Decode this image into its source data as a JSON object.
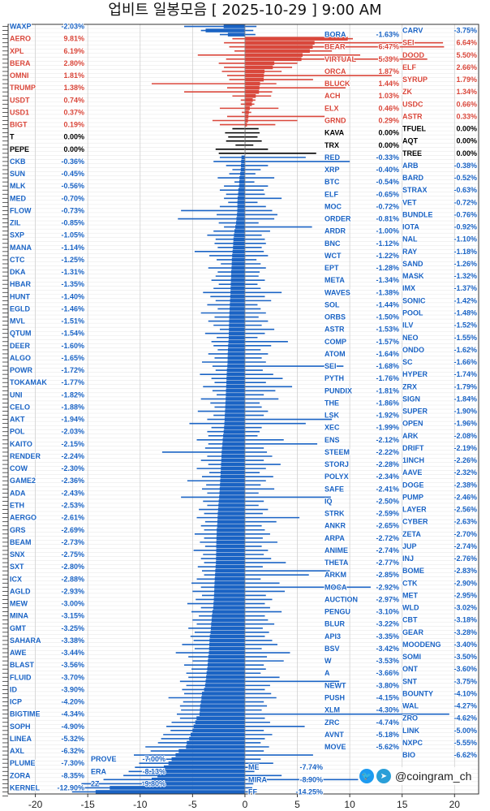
{
  "title": "업비트 일봉모음 [ 2025-10-29 ]  9:00 AM",
  "watermark": "@coingram_ch",
  "icons": [
    "twitter-icon",
    "telegram-icon"
  ],
  "colors": {
    "up": "#d9473b",
    "down": "#1a63c4",
    "flat": "#000000"
  },
  "chart_data": {
    "type": "bar",
    "orientation": "horizontal",
    "title": "업비트 일봉모음 [ 2025-10-29 ]  9:00 AM",
    "xlim": [
      -22.6,
      22.3
    ],
    "xticks": [
      -20,
      -15,
      -10,
      -5,
      0,
      5,
      10,
      15,
      20
    ],
    "grid": true,
    "columns": [
      "name",
      "change_pct",
      "low_pct",
      "high_pct"
    ],
    "rows": [
      [
        "WAXP",
        -2.03,
        -5.8,
        1.1
      ],
      [
        "CARV",
        -3.75,
        -4.2,
        0.8
      ],
      [
        "BORA",
        -1.63,
        -2.4,
        1.0
      ],
      [
        "AERO",
        9.81,
        -1.2,
        10.3
      ],
      [
        "SEI",
        6.64,
        -2.0,
        18.9
      ],
      [
        "BEAR",
        6.47,
        -1.5,
        19.0
      ],
      [
        "XPL",
        6.19,
        -1.0,
        8.3
      ],
      [
        "DOOD",
        5.5,
        -4.5,
        11.0
      ],
      [
        "VIRTUAL",
        5.39,
        -1.8,
        17.4
      ],
      [
        "BERA",
        2.8,
        -2.5,
        5.0
      ],
      [
        "ELF",
        2.66,
        -2.0,
        4.5
      ],
      [
        "ORCA",
        1.87,
        -2.2,
        3.5
      ],
      [
        "OMNI",
        1.81,
        -1.7,
        14.0
      ],
      [
        "SYRUP",
        1.79,
        -1.5,
        6.5
      ],
      [
        "BLUCK",
        1.44,
        -8.9,
        3.0
      ],
      [
        "TRUMP",
        1.38,
        -1.7,
        9.6
      ],
      [
        "ZK",
        1.34,
        -5.8,
        2.6
      ],
      [
        "ACH",
        1.03,
        -1.2,
        2.5
      ],
      [
        "USDT",
        0.74,
        -0.4,
        1.0
      ],
      [
        "USDC",
        0.66,
        -0.4,
        0.9
      ],
      [
        "ELX",
        0.46,
        -2.4,
        3.2
      ],
      [
        "USD1",
        0.37,
        -0.3,
        0.6
      ],
      [
        "ASTR",
        0.33,
        -1.7,
        7.6
      ],
      [
        "GRND",
        0.29,
        -3.1,
        5.0
      ],
      [
        "BIGT",
        0.19,
        -2.4,
        2.9
      ],
      [
        "TFUEL",
        0.0,
        -1.2,
        1.3
      ],
      [
        "KAVA",
        0.0,
        -1.9,
        1.4
      ],
      [
        "T",
        0.0,
        -1.6,
        1.2
      ],
      [
        "AQT",
        0.0,
        -1.8,
        1.6
      ],
      [
        "TRX",
        0.0,
        -0.9,
        0.8
      ],
      [
        "PEPE",
        0.0,
        -2.8,
        2.2
      ],
      [
        "TREE",
        0.0,
        -2.5,
        6.8
      ],
      [
        "RED",
        -0.33,
        -2.4,
        5.8
      ],
      [
        "CKB",
        -0.36,
        -3.0,
        10.0
      ],
      [
        "ARB",
        -0.38,
        -1.8,
        2.2
      ],
      [
        "XRP",
        -0.4,
        -1.2,
        1.5
      ],
      [
        "SUN",
        -0.45,
        -1.5,
        1.0
      ],
      [
        "BARD",
        -0.52,
        -2.6,
        2.8
      ],
      [
        "BTC",
        -0.54,
        -1.0,
        0.9
      ],
      [
        "MLK",
        -0.56,
        -2.0,
        2.2
      ],
      [
        "STRAX",
        -0.63,
        -2.4,
        1.8
      ],
      [
        "ELF",
        -0.65,
        -1.8,
        1.9
      ],
      [
        "MED",
        -0.7,
        -2.0,
        3.5
      ],
      [
        "VET",
        -0.72,
        -1.6,
        1.2
      ],
      [
        "MOC",
        -0.72,
        -2.4,
        2.0
      ],
      [
        "FLOW",
        -0.73,
        -6.1,
        2.6
      ],
      [
        "BUNDLE",
        -0.76,
        -2.7,
        3.1
      ],
      [
        "ORDER",
        -0.81,
        -6.4,
        2.8
      ],
      [
        "ZIL",
        -0.85,
        -2.5,
        1.3
      ],
      [
        "IOTA",
        -0.92,
        -2.0,
        6.4
      ],
      [
        "ARDR",
        -1.0,
        -3.0,
        2.4
      ],
      [
        "SXP",
        -1.05,
        -3.6,
        1.6
      ],
      [
        "NAL",
        -1.1,
        -2.8,
        1.9
      ],
      [
        "BNC",
        -1.12,
        -2.9,
        2.0
      ],
      [
        "MANA",
        -1.14,
        -2.6,
        1.6
      ],
      [
        "RAY",
        -1.18,
        -4.8,
        1.8
      ],
      [
        "WCT",
        -1.22,
        -3.4,
        2.2
      ],
      [
        "CTC",
        -1.25,
        -2.7,
        1.1
      ],
      [
        "SAND",
        -1.26,
        -2.3,
        1.5
      ],
      [
        "EPT",
        -1.28,
        -3.5,
        2.0
      ],
      [
        "DKA",
        -1.31,
        -2.6,
        1.4
      ],
      [
        "MASK",
        -1.32,
        -2.8,
        1.3
      ],
      [
        "META",
        -1.34,
        -3.2,
        1.9
      ],
      [
        "HBAR",
        -1.35,
        -2.5,
        1.2
      ],
      [
        "IMX",
        -1.37,
        -3.0,
        1.5
      ],
      [
        "WAVES",
        -1.38,
        -4.0,
        3.5
      ],
      [
        "HUNT",
        -1.4,
        -3.3,
        1.9
      ],
      [
        "SONIC",
        -1.42,
        -2.8,
        2.5
      ],
      [
        "SOL",
        -1.44,
        -3.6,
        1.2
      ],
      [
        "EGLD",
        -1.46,
        -2.6,
        1.5
      ],
      [
        "POOL",
        -1.48,
        -4.2,
        2.0
      ],
      [
        "ORBS",
        -1.5,
        -2.9,
        1.3
      ],
      [
        "MVL",
        -1.51,
        -3.5,
        2.2
      ],
      [
        "ILV",
        -1.52,
        -3.0,
        1.6
      ],
      [
        "ASTR",
        -1.53,
        -2.4,
        2.8
      ],
      [
        "QTUM",
        -1.54,
        -3.8,
        1.9
      ],
      [
        "NEO",
        -1.55,
        -2.7,
        1.2
      ],
      [
        "COMP",
        -1.57,
        -3.2,
        4.1
      ],
      [
        "DEER",
        -1.6,
        -3.0,
        2.5
      ],
      [
        "ONDO",
        -1.62,
        -2.6,
        1.5
      ],
      [
        "ATOM",
        -1.64,
        -3.5,
        2.2
      ],
      [
        "ALGO",
        -1.65,
        -2.9,
        1.6
      ],
      [
        "SC",
        -1.66,
        -4.1,
        2.0
      ],
      [
        "SEI",
        -1.68,
        -3.1,
        9.4
      ],
      [
        "POWR",
        -1.72,
        -2.8,
        1.7
      ],
      [
        "HYPER",
        -1.74,
        -4.3,
        2.7
      ],
      [
        "PYTH",
        -1.76,
        -3.2,
        3.6
      ],
      [
        "TOKAMAK",
        -1.77,
        -2.9,
        2.0
      ],
      [
        "ZRX",
        -1.79,
        -4.0,
        4.5
      ],
      [
        "PUNDIX",
        -1.81,
        -3.1,
        2.9
      ],
      [
        "UNI",
        -1.82,
        -2.7,
        1.8
      ],
      [
        "SIGN",
        -1.84,
        -4.2,
        3.2
      ],
      [
        "THE",
        -1.86,
        -3.3,
        1.4
      ],
      [
        "CELO",
        -1.88,
        -2.9,
        1.6
      ],
      [
        "SUPER",
        -1.9,
        -4.5,
        2.2
      ],
      [
        "LSK",
        -1.92,
        -3.0,
        1.8
      ],
      [
        "AKT",
        -1.94,
        -3.6,
        8.3
      ],
      [
        "OPEN",
        -1.96,
        -5.3,
        5.8
      ],
      [
        "XEC",
        -1.99,
        -3.2,
        1.6
      ],
      [
        "POL",
        -2.03,
        -3.6,
        1.4
      ],
      [
        "ARK",
        -2.08,
        -3.5,
        1.2
      ],
      [
        "ENS",
        -2.12,
        -4.6,
        3.7
      ],
      [
        "KAITO",
        -2.15,
        -3.5,
        6.9
      ],
      [
        "DRIFT",
        -2.19,
        -3.8,
        1.8
      ],
      [
        "STEEM",
        -2.22,
        -7.9,
        2.1
      ],
      [
        "RENDER",
        -2.24,
        -3.6,
        2.6
      ],
      [
        "1INCH",
        -2.26,
        -4.2,
        1.8
      ],
      [
        "STORJ",
        -2.28,
        -3.5,
        3.4
      ],
      [
        "COW",
        -2.3,
        -4.6,
        2.0
      ],
      [
        "AAVE",
        -2.32,
        -3.4,
        1.4
      ],
      [
        "POLYX",
        -2.34,
        -4.1,
        2.7
      ],
      [
        "GAME2",
        -2.36,
        -5.5,
        2.0
      ],
      [
        "DOGE",
        -2.38,
        -3.7,
        1.5
      ],
      [
        "SAFE",
        -2.41,
        -4.1,
        2.8
      ],
      [
        "ADA",
        -2.43,
        -3.6,
        1.3
      ],
      [
        "PUMP",
        -2.46,
        -6.1,
        8.2
      ],
      [
        "IQ",
        -2.5,
        -4.0,
        1.8
      ],
      [
        "ETH",
        -2.53,
        -3.6,
        1.3
      ],
      [
        "LAYER",
        -2.56,
        -4.4,
        2.2
      ],
      [
        "STRK",
        -2.59,
        -3.9,
        1.7
      ],
      [
        "AERGO",
        -2.61,
        -4.6,
        5.2
      ],
      [
        "CYBER",
        -2.63,
        -3.8,
        3.0
      ],
      [
        "ANKR",
        -2.65,
        -4.2,
        1.6
      ],
      [
        "GRS",
        -2.69,
        -3.9,
        1.9
      ],
      [
        "ZETA",
        -2.7,
        -4.8,
        2.4
      ],
      [
        "ARPA",
        -2.72,
        -3.9,
        1.7
      ],
      [
        "BEAM",
        -2.73,
        -4.3,
        3.1
      ],
      [
        "JUP",
        -2.74,
        -3.8,
        1.6
      ],
      [
        "ANIME",
        -2.74,
        -4.9,
        2.2
      ],
      [
        "SNX",
        -2.75,
        -4.0,
        1.8
      ],
      [
        "INJ",
        -2.76,
        -4.2,
        2.5
      ],
      [
        "THETA",
        -2.77,
        -3.9,
        3.9
      ],
      [
        "SXT",
        -2.8,
        -4.5,
        1.7
      ],
      [
        "BOME",
        -2.83,
        -4.1,
        8.1
      ],
      [
        "ARKM",
        -2.85,
        -3.9,
        6.1
      ],
      [
        "ICX",
        -2.88,
        -4.6,
        1.5
      ],
      [
        "CTK",
        -2.9,
        -5.1,
        3.3
      ],
      [
        "MOCA",
        -2.92,
        -4.2,
        12.0
      ],
      [
        "AGLD",
        -2.93,
        -5.0,
        3.8
      ],
      [
        "MET",
        -2.95,
        -4.1,
        2.0
      ],
      [
        "AUCTION",
        -2.97,
        -4.7,
        2.6
      ],
      [
        "MEW",
        -3.0,
        -5.5,
        1.9
      ],
      [
        "WLD",
        -3.02,
        -4.2,
        2.4
      ],
      [
        "PENGU",
        -3.1,
        -5.1,
        3.5
      ],
      [
        "MINA",
        -3.15,
        -4.4,
        1.9
      ],
      [
        "CBT",
        -3.18,
        -5.0,
        2.2
      ],
      [
        "BLUR",
        -3.22,
        -4.6,
        2.8
      ],
      [
        "GMT",
        -3.25,
        -5.4,
        1.7
      ],
      [
        "GEAR",
        -3.28,
        -4.8,
        2.3
      ],
      [
        "API3",
        -3.35,
        -5.2,
        1.9
      ],
      [
        "SAHARA",
        -3.38,
        -4.9,
        2.6
      ],
      [
        "MOODENG",
        -3.4,
        -6.0,
        3.1
      ],
      [
        "BSV",
        -3.42,
        -4.8,
        1.6
      ],
      [
        "AWE",
        -3.44,
        -6.6,
        4.3
      ],
      [
        "SOMI",
        -3.5,
        -5.4,
        2.1
      ],
      [
        "W",
        -3.53,
        -5.0,
        3.7
      ],
      [
        "BLAST",
        -3.56,
        -5.8,
        1.8
      ],
      [
        "ONT",
        -3.6,
        -5.1,
        2.0
      ],
      [
        "A",
        -3.66,
        -5.6,
        1.5
      ],
      [
        "FLUID",
        -3.7,
        -5.4,
        3.3
      ],
      [
        "SNT",
        -3.75,
        -6.2,
        9.0
      ],
      [
        "NEWT",
        -3.8,
        -5.6,
        2.4
      ],
      [
        "ID",
        -3.9,
        -6.0,
        1.9
      ],
      [
        "BOUNTY",
        -4.1,
        -5.8,
        2.5
      ],
      [
        "PUSH",
        -4.15,
        -7.3,
        3.0
      ],
      [
        "ICP",
        -4.2,
        -5.9,
        1.8
      ],
      [
        "WAL",
        -4.27,
        -6.2,
        2.1
      ],
      [
        "XLM",
        -4.3,
        -6.1,
        1.6
      ],
      [
        "BIGTIME",
        -4.34,
        -6.5,
        19.5
      ],
      [
        "ZRO",
        -4.62,
        -6.2,
        1.9
      ],
      [
        "ZRC",
        -4.74,
        -7.0,
        2.4
      ],
      [
        "SOPH",
        -4.9,
        -7.5,
        5.7
      ],
      [
        "LINK",
        -5.0,
        -7.1,
        1.8
      ],
      [
        "AVNT",
        -5.18,
        -7.8,
        2.6
      ],
      [
        "LINEA",
        -5.32,
        -8.0,
        1.9
      ],
      [
        "NXPC",
        -5.55,
        -8.3,
        1.5
      ],
      [
        "MOVE",
        -5.62,
        -9.5,
        2.3
      ],
      [
        "AXL",
        -6.32,
        -9.0,
        1.8
      ],
      [
        "BIO",
        -6.62,
        -10.6,
        6.5
      ],
      [
        "PROVE",
        -7.0,
        -9.8,
        1.5
      ],
      [
        "PLUME",
        -7.3,
        -10.1,
        2.7
      ],
      [
        "ME",
        -7.74,
        -10.5,
        1.2
      ],
      [
        "ERA",
        -8.13,
        -11.1,
        0.9
      ],
      [
        "ZORA",
        -8.35,
        -11.6,
        3.5
      ],
      [
        "MIRA",
        -8.9,
        -13.5,
        10.8
      ],
      [
        "2Z",
        -9.8,
        -15.6,
        0.8
      ],
      [
        "KERNEL",
        -12.9,
        -15.9,
        0.7
      ],
      [
        "FF",
        -14.25,
        -16.5,
        0.5
      ]
    ]
  }
}
